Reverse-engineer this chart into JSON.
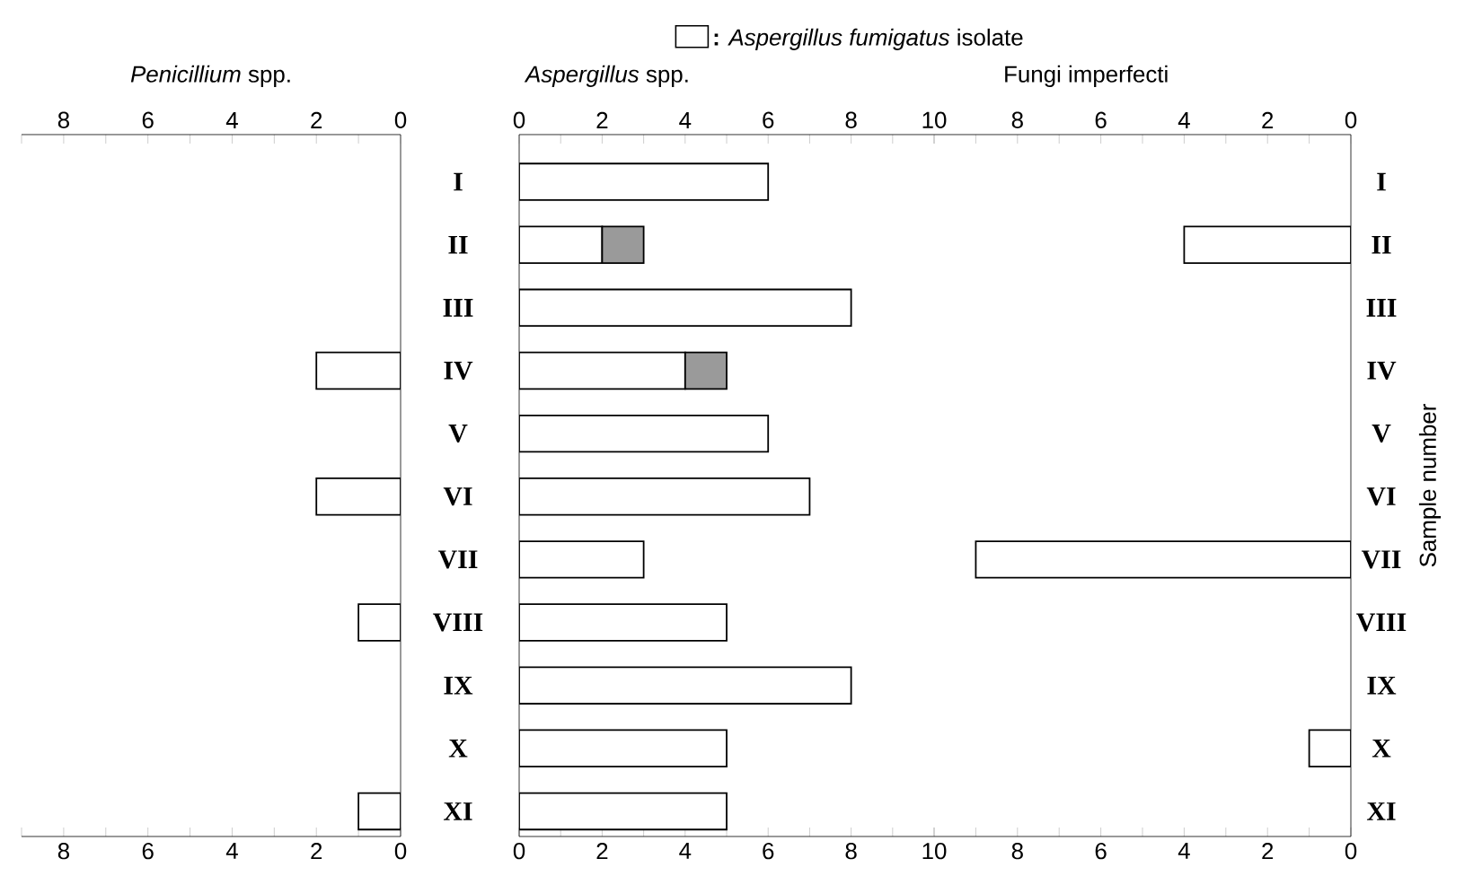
{
  "chart_data": [
    {
      "type": "bar",
      "orientation": "horizontal",
      "title": "*Penicillium* spp.",
      "categories": [
        "I",
        "II",
        "III",
        "IV",
        "V",
        "VI",
        "VII",
        "VIII",
        "IX",
        "X",
        "XI"
      ],
      "values": [
        null,
        null,
        null,
        2,
        null,
        2,
        null,
        1,
        null,
        null,
        1
      ],
      "color": "#ffffff",
      "xlim": [
        9,
        0
      ],
      "xticks": [
        {
          "value": 9,
          "label": null
        },
        8,
        {
          "value": 7,
          "label": null
        },
        6,
        {
          "value": 5,
          "label": null
        },
        4,
        {
          "value": 3,
          "label": null
        },
        2,
        {
          "value": 1,
          "label": null
        },
        0
      ],
      "x2lim": [
        9,
        0
      ],
      "x2ticks": [
        {
          "value": 9,
          "label": null
        },
        8,
        {
          "value": 7,
          "label": null
        },
        6,
        {
          "value": 5,
          "label": null
        },
        4,
        {
          "value": 3,
          "label": null
        },
        2,
        {
          "value": 1,
          "label": null
        },
        0
      ]
    },
    {
      "type": "bar",
      "orientation": "horizontal",
      "stacked": true,
      "title": "*Aspergillus* spp.",
      "categories": [
        null,
        null,
        null,
        null,
        null,
        null,
        null,
        null,
        null,
        null,
        null
      ],
      "series": [
        {
          "color": "#ffffff",
          "values": [
            6,
            2,
            8,
            4,
            6,
            7,
            3,
            5,
            8,
            5,
            5
          ]
        },
        {
          "name": "**:** *Aspergillus fumigatus* isolate",
          "color": "#9a9a9a",
          "values": [
            null,
            1,
            null,
            1,
            null,
            null,
            null,
            null,
            null,
            null,
            null
          ]
        }
      ],
      "legend": "top",
      "xlim": [
        0,
        10
      ],
      "xticks": [
        0,
        {
          "value": 1,
          "label": null
        },
        2,
        {
          "value": 3,
          "label": null
        },
        4,
        {
          "value": 5,
          "label": null
        },
        6,
        {
          "value": 7,
          "label": null
        },
        8,
        {
          "value": 9,
          "label": null
        },
        10
      ],
      "x2lim": [
        0,
        10
      ],
      "x2ticks": [
        0,
        {
          "value": 1,
          "label": null
        },
        2,
        {
          "value": 3,
          "label": null
        },
        4,
        {
          "value": 5,
          "label": null
        },
        6,
        {
          "value": 7,
          "label": null
        },
        8,
        {
          "value": 9,
          "label": null
        },
        10
      ]
    },
    {
      "type": "bar",
      "orientation": "horizontal",
      "title": "Fungi imperfecti",
      "ylabel": "Sample number",
      "categories": [
        "I",
        "II",
        "III",
        "IV",
        "V",
        "VI",
        "VII",
        "VIII",
        "IX",
        "X",
        "XI"
      ],
      "values": [
        null,
        4,
        null,
        null,
        null,
        null,
        9,
        null,
        null,
        1,
        null
      ],
      "color": "#ffffff",
      "xlim": [
        10,
        0
      ],
      "xticks": [
        {
          "value": 10,
          "label": null
        },
        {
          "value": 9,
          "label": null
        },
        8,
        {
          "value": 7,
          "label": null
        },
        6,
        {
          "value": 5,
          "label": null
        },
        4,
        {
          "value": 3,
          "label": null
        },
        2,
        {
          "value": 1,
          "label": null
        },
        0
      ],
      "x2lim": [
        10,
        0
      ],
      "x2ticks": [
        {
          "value": 10,
          "label": null
        },
        {
          "value": 9,
          "label": null
        },
        8,
        {
          "value": 7,
          "label": null
        },
        6,
        {
          "value": 5,
          "label": null
        },
        4,
        {
          "value": 3,
          "label": null
        },
        2,
        {
          "value": 1,
          "label": null
        },
        0
      ]
    }
  ]
}
